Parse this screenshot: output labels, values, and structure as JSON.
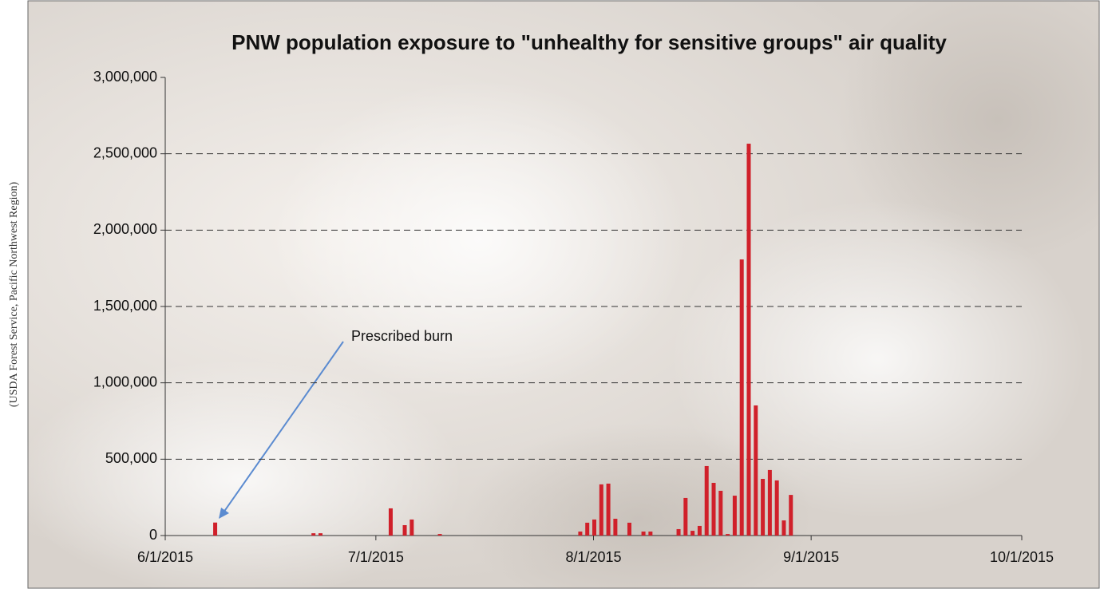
{
  "note": "(USDA Forest Service, Pacific Northwest Region)",
  "chart_data": {
    "type": "bar",
    "title": "PNW population exposure to \"unhealthy for sensitive groups\" air quality",
    "annotation": "Prescribed burn",
    "x": [
      "2015-06-08",
      "2015-06-22",
      "2015-06-23",
      "2015-07-03",
      "2015-07-05",
      "2015-07-06",
      "2015-07-10",
      "2015-07-30",
      "2015-07-31",
      "2015-08-01",
      "2015-08-02",
      "2015-08-03",
      "2015-08-04",
      "2015-08-06",
      "2015-08-08",
      "2015-08-09",
      "2015-08-13",
      "2015-08-14",
      "2015-08-15",
      "2015-08-16",
      "2015-08-17",
      "2015-08-18",
      "2015-08-19",
      "2015-08-20",
      "2015-08-21",
      "2015-08-22",
      "2015-08-23",
      "2015-08-24",
      "2015-08-25",
      "2015-08-26",
      "2015-08-27",
      "2015-08-28",
      "2015-08-29"
    ],
    "values": [
      85000,
      15000,
      15000,
      178000,
      68000,
      105000,
      10000,
      26000,
      84000,
      105000,
      335000,
      340000,
      110000,
      84000,
      26000,
      26000,
      42000,
      246000,
      31000,
      63000,
      455000,
      345000,
      293000,
      10000,
      261000,
      1808000,
      2566000,
      852000,
      371000,
      429000,
      361000,
      99000,
      266000
    ],
    "color": "#d0202a",
    "xlim": [
      "2015-06-01",
      "2015-10-01"
    ],
    "xticks": [
      {
        "value": "2015-06-01",
        "label": "6/1/2015"
      },
      {
        "value": "2015-07-01",
        "label": "7/1/2015"
      },
      {
        "value": "2015-08-01",
        "label": "8/1/2015"
      },
      {
        "value": "2015-09-01",
        "label": "9/1/2015"
      },
      {
        "value": "2015-10-01",
        "label": "10/1/2015"
      }
    ],
    "ylim": [
      0,
      3000000
    ],
    "yticks": [
      0,
      {
        "value": 500000,
        "label": "500,000"
      },
      {
        "value": 1000000,
        "label": "1,000,000"
      },
      {
        "value": 1500000,
        "label": "1,500,000"
      },
      {
        "value": 2000000,
        "label": "2,000,000"
      },
      {
        "value": 2500000,
        "label": "2,500,000"
      },
      {
        "value": 3000000,
        "label": "3,000,000"
      }
    ],
    "grid": true
  }
}
